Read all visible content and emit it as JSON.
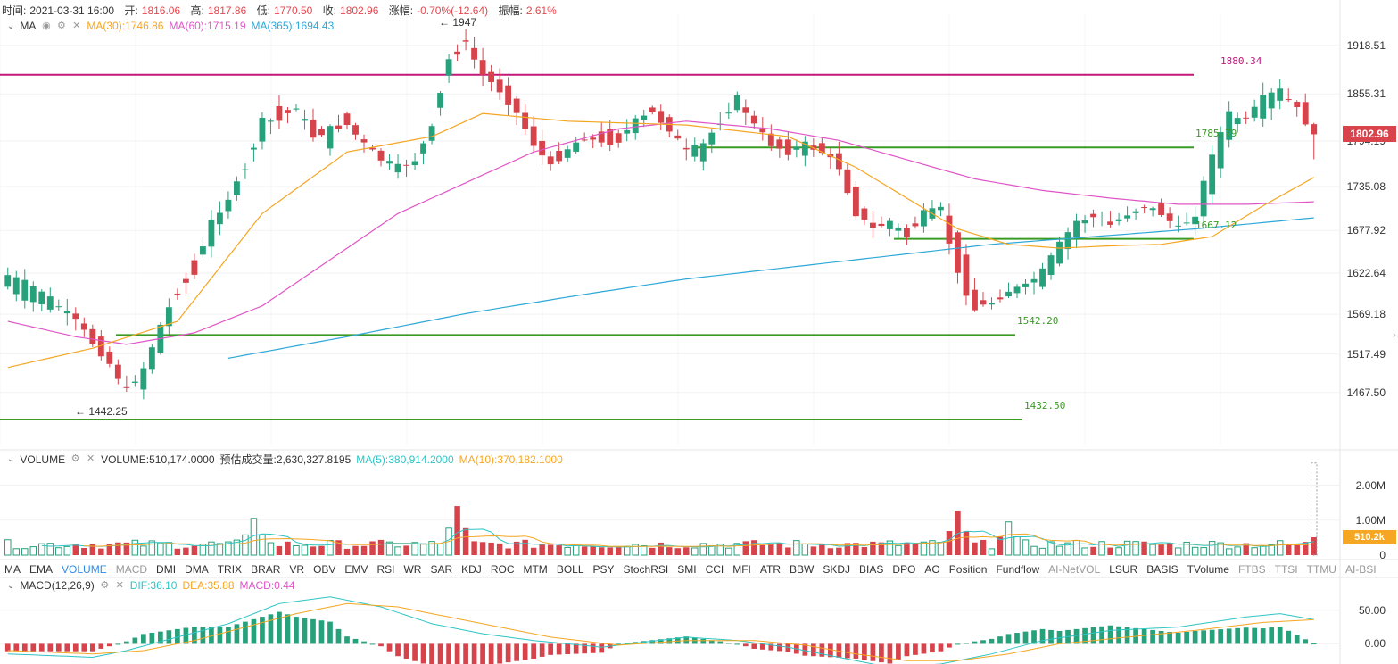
{
  "header": {
    "time_label": "时间:",
    "time_value": "2021-03-31 16:00",
    "open_label": "开:",
    "open_value": "1816.06",
    "high_label": "高:",
    "high_value": "1817.86",
    "low_label": "低:",
    "low_value": "1770.50",
    "close_label": "收:",
    "close_value": "1802.96",
    "change_label": "涨幅:",
    "change_value": "-0.70%(-12.64)",
    "amp_label": "振幅:",
    "amp_value": "2.61%"
  },
  "ma_legend": {
    "name": "MA",
    "ma30": "MA(30):1746.86",
    "ma60": "MA(60):1715.19",
    "ma365": "MA(365):1694.43"
  },
  "volume_legend": {
    "name": "VOLUME",
    "volume": "VOLUME:510,174.0000",
    "estimate": "预估成交量:2,630,327.8195",
    "ma5": "MA(5):380,914.2000",
    "ma10": "MA(10):370,182.1000"
  },
  "macd_legend": {
    "name": "MACD(12,26,9)",
    "dif": "DIF:36.10",
    "dea": "DEA:35.88",
    "macd": "MACD:0.44"
  },
  "tabs": [
    "MA",
    "EMA",
    "VOLUME",
    "MACD",
    "DMI",
    "DMA",
    "TRIX",
    "BRAR",
    "VR",
    "OBV",
    "EMV",
    "RSI",
    "WR",
    "SAR",
    "KDJ",
    "ROC",
    "MTM",
    "BOLL",
    "PSY",
    "StochRSI",
    "SMI",
    "CCI",
    "MFI",
    "ATR",
    "BBW",
    "SKDJ",
    "BIAS",
    "DPO",
    "AO",
    "Position",
    "Fundflow",
    "AI-NetVOL",
    "LSUR",
    "BASIS",
    "TVolume",
    "FTBS",
    "TTSI",
    "TTMU",
    "AI-BSI"
  ],
  "tab_active": "VOLUME",
  "tabs_muted": [
    "MACD",
    "AI-NetVOL",
    "FTBS",
    "TTSI",
    "TTMU",
    "AI-BSI"
  ],
  "price_axis": [
    "1918.51",
    "1855.31",
    "1735.08",
    "1677.92",
    "1622.64",
    "1569.18",
    "1517.49",
    "1467.50"
  ],
  "price_axis_hidden": "1794.19",
  "current_price": "1802.96",
  "volume_axis": [
    "2.00M",
    "1.00M",
    "0"
  ],
  "volume_current": "510.2k",
  "macd_axis": [
    "50.00",
    "0.00"
  ],
  "levels": [
    {
      "name": "resistance-1880",
      "value": "1880.34",
      "color": "#c2187a"
    },
    {
      "name": "level-1785",
      "value": "1785.79",
      "color": "#3a9b24"
    },
    {
      "name": "level-1667",
      "value": "1667.12",
      "color": "#3a9b24"
    },
    {
      "name": "level-1542",
      "value": "1542.20",
      "color": "#3a9b24"
    },
    {
      "name": "level-1432",
      "value": "1432.50",
      "color": "#3a9b24"
    }
  ],
  "extremes": {
    "high": "1947",
    "low": "1442.25"
  },
  "colors": {
    "up": "#26a17b",
    "down": "#d6434b",
    "ma30": "#f5a623",
    "ma60": "#e056c6",
    "ma365": "#2ea8d8",
    "level": "#3a9b24",
    "resistance": "#c2187a",
    "dif": "#2ec4c4",
    "dea": "#f5a623"
  },
  "chart_data": {
    "type": "candlestick",
    "ylim": [
      1400,
      1960
    ],
    "anchors": [
      [
        0,
        1605,
        1620
      ],
      [
        4,
        1580,
        1600
      ],
      [
        8,
        1575,
        1560
      ],
      [
        12,
        1520,
        1505
      ],
      [
        14,
        1480,
        1470
      ],
      [
        16,
        1470,
        1500
      ],
      [
        18,
        1520,
        1555
      ],
      [
        20,
        1590,
        1600
      ],
      [
        22,
        1640,
        1620
      ],
      [
        24,
        1660,
        1690
      ],
      [
        26,
        1700,
        1720
      ],
      [
        28,
        1760,
        1755
      ],
      [
        30,
        1800,
        1820
      ],
      [
        32,
        1840,
        1820
      ],
      [
        34,
        1830,
        1840
      ],
      [
        36,
        1820,
        1800
      ],
      [
        38,
        1790,
        1810
      ],
      [
        40,
        1830,
        1815
      ],
      [
        42,
        1800,
        1790
      ],
      [
        44,
        1780,
        1770
      ],
      [
        46,
        1760,
        1760
      ],
      [
        48,
        1760,
        1770
      ],
      [
        50,
        1800,
        1810
      ],
      [
        52,
        1880,
        1900
      ],
      [
        54,
        1930,
        1920
      ],
      [
        56,
        1900,
        1880
      ],
      [
        58,
        1870,
        1860
      ],
      [
        60,
        1850,
        1830
      ],
      [
        62,
        1810,
        1790
      ],
      [
        64,
        1780,
        1760
      ],
      [
        66,
        1770,
        1785
      ],
      [
        68,
        1790,
        1800
      ],
      [
        70,
        1810,
        1790
      ],
      [
        72,
        1800,
        1795
      ],
      [
        74,
        1810,
        1820
      ],
      [
        76,
        1840,
        1830
      ],
      [
        78,
        1820,
        1810
      ],
      [
        80,
        1790,
        1780
      ],
      [
        82,
        1770,
        1790
      ],
      [
        84,
        1810,
        1820
      ],
      [
        86,
        1840,
        1850
      ],
      [
        88,
        1830,
        1815
      ],
      [
        90,
        1800,
        1790
      ],
      [
        92,
        1790,
        1780
      ],
      [
        94,
        1780,
        1790
      ],
      [
        96,
        1790,
        1780
      ],
      [
        98,
        1775,
        1760
      ],
      [
        100,
        1730,
        1700
      ],
      [
        102,
        1690,
        1680
      ],
      [
        104,
        1680,
        1690
      ],
      [
        106,
        1680,
        1670
      ],
      [
        108,
        1690,
        1700
      ],
      [
        110,
        1710,
        1705
      ],
      [
        112,
        1680,
        1620
      ],
      [
        114,
        1600,
        1575
      ],
      [
        116,
        1580,
        1585
      ],
      [
        118,
        1590,
        1600
      ],
      [
        120,
        1610,
        1605
      ],
      [
        122,
        1610,
        1625
      ],
      [
        124,
        1640,
        1660
      ],
      [
        126,
        1670,
        1690
      ],
      [
        128,
        1700,
        1695
      ],
      [
        130,
        1690,
        1685
      ],
      [
        132,
        1690,
        1700
      ],
      [
        134,
        1705,
        1710
      ],
      [
        136,
        1710,
        1700
      ],
      [
        138,
        1690,
        1680
      ],
      [
        140,
        1680,
        1700
      ],
      [
        142,
        1720,
        1780
      ],
      [
        144,
        1800,
        1830
      ],
      [
        146,
        1830,
        1820
      ],
      [
        148,
        1830,
        1850
      ],
      [
        150,
        1850,
        1860
      ],
      [
        152,
        1850,
        1835
      ],
      [
        154,
        1830,
        1802.96
      ]
    ],
    "ma30_anchors": [
      [
        0,
        1500
      ],
      [
        10,
        1525
      ],
      [
        20,
        1560
      ],
      [
        30,
        1700
      ],
      [
        40,
        1780
      ],
      [
        50,
        1800
      ],
      [
        56,
        1830
      ],
      [
        66,
        1820
      ],
      [
        80,
        1815
      ],
      [
        92,
        1800
      ],
      [
        100,
        1760
      ],
      [
        106,
        1720
      ],
      [
        112,
        1680
      ],
      [
        118,
        1660
      ],
      [
        124,
        1655
      ],
      [
        130,
        1658
      ],
      [
        136,
        1660
      ],
      [
        142,
        1670
      ],
      [
        148,
        1710
      ],
      [
        154,
        1746.86
      ]
    ],
    "ma60_anchors": [
      [
        0,
        1560
      ],
      [
        8,
        1540
      ],
      [
        14,
        1530
      ],
      [
        22,
        1545
      ],
      [
        30,
        1580
      ],
      [
        38,
        1640
      ],
      [
        46,
        1700
      ],
      [
        54,
        1740
      ],
      [
        62,
        1780
      ],
      [
        72,
        1810
      ],
      [
        80,
        1820
      ],
      [
        90,
        1810
      ],
      [
        98,
        1795
      ],
      [
        106,
        1770
      ],
      [
        114,
        1745
      ],
      [
        122,
        1730
      ],
      [
        130,
        1720
      ],
      [
        138,
        1712
      ],
      [
        146,
        1712
      ],
      [
        154,
        1715.19
      ]
    ],
    "ma365_anchors": [
      [
        26,
        1512
      ],
      [
        40,
        1540
      ],
      [
        54,
        1570
      ],
      [
        68,
        1595
      ],
      [
        80,
        1615
      ],
      [
        92,
        1630
      ],
      [
        104,
        1645
      ],
      [
        116,
        1660
      ],
      [
        128,
        1670
      ],
      [
        140,
        1680
      ],
      [
        154,
        1694.43
      ]
    ],
    "volume_ylim": [
      0,
      2600000
    ],
    "volume_markers": [
      [
        29,
        1050000
      ],
      [
        53,
        1400000
      ],
      [
        112,
        1250000
      ],
      [
        118,
        950000
      ]
    ],
    "macd_ylim": [
      -30,
      75
    ],
    "dif_anchors": [
      [
        0,
        -15
      ],
      [
        10,
        -20
      ],
      [
        14,
        -10
      ],
      [
        20,
        10
      ],
      [
        26,
        30
      ],
      [
        32,
        60
      ],
      [
        38,
        70
      ],
      [
        44,
        55
      ],
      [
        50,
        30
      ],
      [
        56,
        15
      ],
      [
        62,
        5
      ],
      [
        70,
        -5
      ],
      [
        80,
        10
      ],
      [
        86,
        5
      ],
      [
        92,
        -5
      ],
      [
        98,
        -20
      ],
      [
        104,
        -35
      ],
      [
        110,
        -30
      ],
      [
        116,
        -15
      ],
      [
        122,
        5
      ],
      [
        130,
        20
      ],
      [
        138,
        25
      ],
      [
        146,
        40
      ],
      [
        150,
        45
      ],
      [
        154,
        36.1
      ]
    ],
    "dea_anchors": [
      [
        0,
        -10
      ],
      [
        10,
        -15
      ],
      [
        16,
        -10
      ],
      [
        22,
        5
      ],
      [
        28,
        25
      ],
      [
        34,
        45
      ],
      [
        40,
        60
      ],
      [
        46,
        55
      ],
      [
        52,
        40
      ],
      [
        58,
        25
      ],
      [
        64,
        10
      ],
      [
        72,
        -2
      ],
      [
        80,
        5
      ],
      [
        88,
        5
      ],
      [
        94,
        -2
      ],
      [
        100,
        -15
      ],
      [
        106,
        -25
      ],
      [
        112,
        -25
      ],
      [
        118,
        -15
      ],
      [
        124,
        0
      ],
      [
        132,
        10
      ],
      [
        140,
        20
      ],
      [
        148,
        32
      ],
      [
        154,
        35.88
      ]
    ]
  }
}
